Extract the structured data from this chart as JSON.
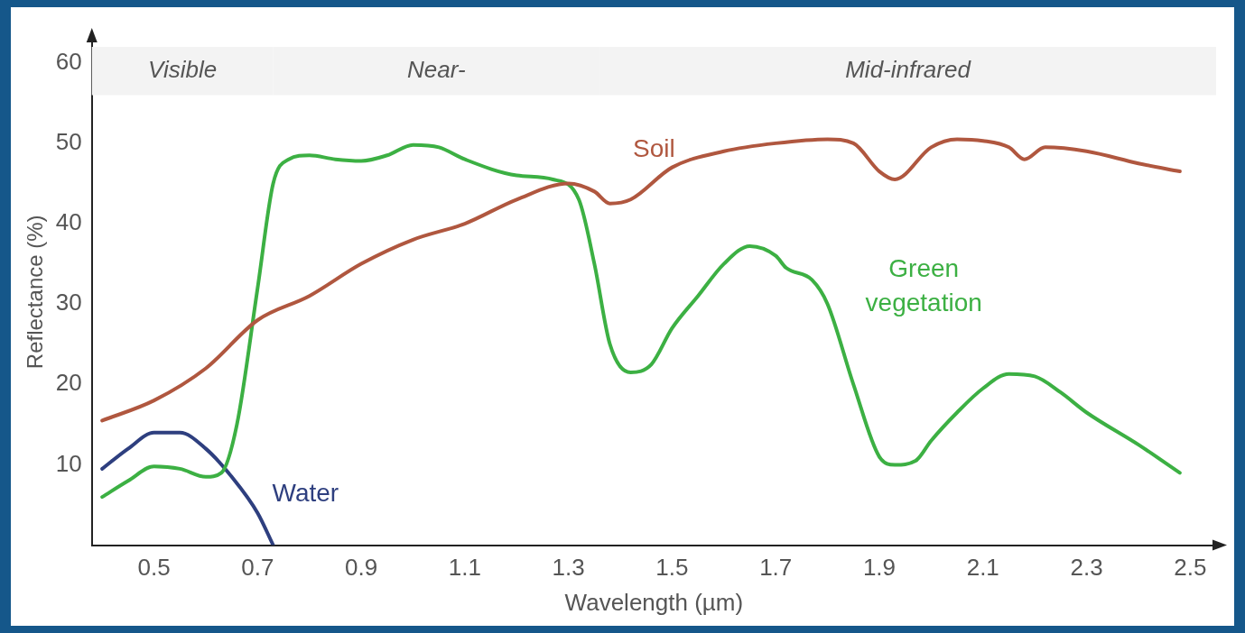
{
  "chart_data": {
    "type": "line",
    "xlabel": "Wavelength (µm)",
    "ylabel": "Reflectance (%)",
    "xlim": [
      0.38,
      2.55
    ],
    "xticks": [
      0.5,
      0.7,
      0.9,
      1.1,
      1.3,
      1.5,
      1.7,
      1.9,
      2.1,
      2.3,
      2.5
    ],
    "ylim": [
      0,
      63
    ],
    "yticks": [
      10,
      20,
      30,
      40,
      50,
      60
    ],
    "grid": false,
    "legend": false,
    "marker": "none",
    "line_style": "solid",
    "bands": [
      {
        "axis": "x",
        "from": 0.38,
        "to": 0.73,
        "label": "Visible",
        "color": "#f3f3f3"
      },
      {
        "axis": "x",
        "from": 0.73,
        "to": 1.36,
        "label": "Near-",
        "color": "#f3f3f3"
      },
      {
        "axis": "x",
        "from": 1.36,
        "to": 2.55,
        "label": "Mid-infrared",
        "color": "#f3f3f3"
      }
    ],
    "series": [
      {
        "name": "Soil",
        "color": "#b0573f",
        "x": [
          0.4,
          0.5,
          0.6,
          0.7,
          0.8,
          0.9,
          1.0,
          1.1,
          1.2,
          1.3,
          1.35,
          1.38,
          1.42,
          1.5,
          1.6,
          1.7,
          1.8,
          1.85,
          1.9,
          1.93,
          2.0,
          2.05,
          2.1,
          2.15,
          2.18,
          2.22,
          2.3,
          2.4,
          2.48
        ],
        "values": [
          15.5,
          18,
          22,
          28,
          31,
          35,
          38,
          40,
          43,
          45,
          44,
          42.5,
          43,
          47,
          49,
          50,
          50.5,
          50,
          46.5,
          45.5,
          49.5,
          50.5,
          50.3,
          49.5,
          48,
          49.5,
          49,
          47.5,
          46.5
        ]
      },
      {
        "name": "Green vegetation",
        "color": "#3cb043",
        "x": [
          0.4,
          0.45,
          0.5,
          0.55,
          0.6,
          0.63,
          0.66,
          0.7,
          0.73,
          0.76,
          0.8,
          0.85,
          0.9,
          0.95,
          1.0,
          1.05,
          1.1,
          1.2,
          1.27,
          1.32,
          1.35,
          1.38,
          1.42,
          1.46,
          1.5,
          1.55,
          1.6,
          1.65,
          1.7,
          1.72,
          1.77,
          1.8,
          1.85,
          1.9,
          1.93,
          1.97,
          2.0,
          2.05,
          2.1,
          2.15,
          2.2,
          2.25,
          2.3,
          2.4,
          2.48
        ],
        "values": [
          6,
          8,
          9.8,
          9.5,
          8.5,
          9,
          15,
          32,
          45,
          48,
          48.5,
          48,
          47.8,
          48.5,
          49.8,
          49.5,
          48,
          46,
          45.5,
          43,
          35,
          25,
          21.5,
          22.5,
          27,
          31,
          35,
          37.2,
          36,
          34.5,
          33,
          30,
          20,
          11,
          10,
          10.5,
          13,
          16.5,
          19.5,
          21.3,
          21,
          19,
          16.5,
          12.5,
          9
        ]
      },
      {
        "name": "Water",
        "color": "#2e3f7f",
        "x": [
          0.4,
          0.45,
          0.5,
          0.55,
          0.6,
          0.65,
          0.7,
          0.73
        ],
        "values": [
          9.5,
          12,
          14,
          14,
          12,
          8.5,
          4,
          0
        ]
      }
    ]
  }
}
